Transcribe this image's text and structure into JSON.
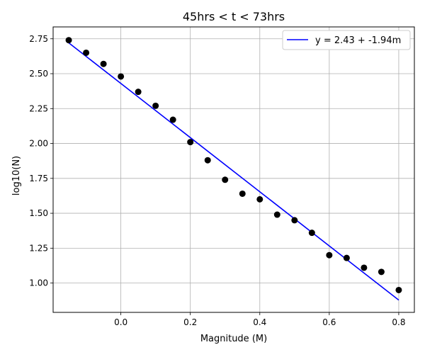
{
  "chart_data": {
    "type": "scatter",
    "title": "45hrs < t < 73hrs",
    "xlabel": "Magnitude (M)",
    "ylabel": "log10(N)",
    "xlim": [
      -0.195,
      0.845
    ],
    "ylim": [
      0.79,
      2.835
    ],
    "xticks": [
      0.0,
      0.2,
      0.4,
      0.6,
      0.8
    ],
    "xtick_labels": [
      "0.0",
      "0.2",
      "0.4",
      "0.6",
      "0.8"
    ],
    "yticks": [
      1.0,
      1.25,
      1.5,
      1.75,
      2.0,
      2.25,
      2.5,
      2.75
    ],
    "ytick_labels": [
      "1.00",
      "1.25",
      "1.50",
      "1.75",
      "2.00",
      "2.25",
      "2.50",
      "2.75"
    ],
    "grid": true,
    "legend_position": "top-right",
    "points": {
      "color": "#000000",
      "x": [
        -0.15,
        -0.1,
        -0.05,
        0.0,
        0.05,
        0.1,
        0.15,
        0.2,
        0.25,
        0.3,
        0.35,
        0.4,
        0.45,
        0.5,
        0.55,
        0.6,
        0.65,
        0.7,
        0.75,
        0.8
      ],
      "y": [
        2.74,
        2.65,
        2.57,
        2.48,
        2.37,
        2.27,
        2.17,
        2.01,
        1.88,
        1.74,
        1.64,
        1.6,
        1.49,
        1.45,
        1.36,
        1.2,
        1.18,
        1.11,
        1.08,
        0.95
      ]
    },
    "fit_line": {
      "name": "y = 2.43 + -1.94m",
      "color": "#0000ff",
      "intercept": 2.43,
      "slope": -1.94,
      "x_range": [
        -0.15,
        0.8
      ]
    }
  }
}
